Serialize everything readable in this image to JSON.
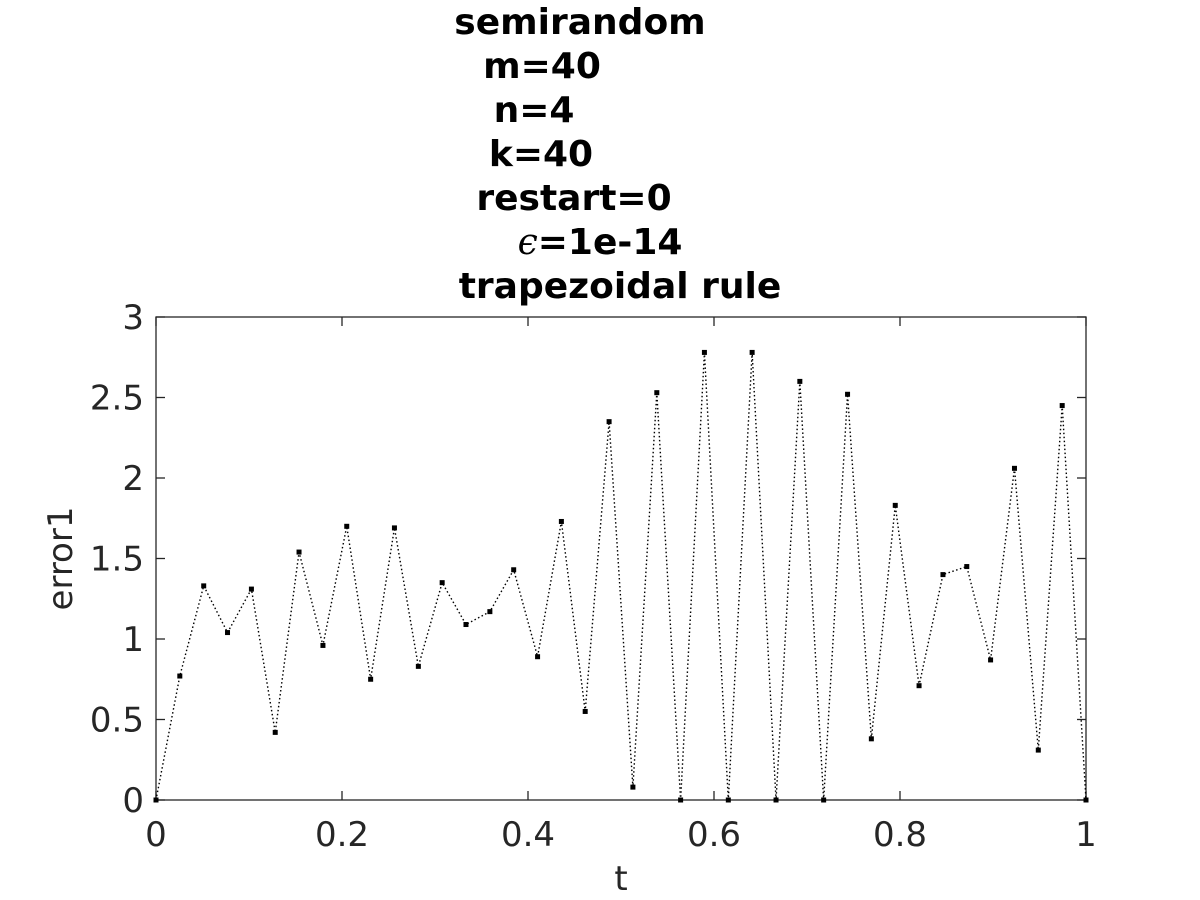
{
  "chart_data": {
    "type": "line",
    "title": [
      "semirandom",
      "m=40",
      "n=4",
      "k=40",
      "restart=0",
      "ϵ=1e-14",
      "trapezoidal rule"
    ],
    "xlabel": "t",
    "ylabel": "error1",
    "xlim": [
      0,
      1
    ],
    "ylim": [
      0,
      3
    ],
    "xticks": [
      "0",
      "0.2",
      "0.4",
      "0.6",
      "0.8",
      "1"
    ],
    "yticks": [
      "0",
      "0.5",
      "1",
      "1.5",
      "2",
      "2.5",
      "3"
    ],
    "grid": false,
    "legend": "none",
    "line_style": "dotted",
    "marker": "square",
    "color": "#000000",
    "series": [
      {
        "x": [
          0,
          0.0256,
          0.0513,
          0.0769,
          0.1026,
          0.1282,
          0.1538,
          0.1795,
          0.2051,
          0.2308,
          0.2564,
          0.2821,
          0.3077,
          0.3333,
          0.359,
          0.3846,
          0.4103,
          0.4359,
          0.4615,
          0.4872,
          0.5128,
          0.5385,
          0.5641,
          0.5897,
          0.6154,
          0.641,
          0.6667,
          0.6923,
          0.7179,
          0.7436,
          0.7692,
          0.7949,
          0.8205,
          0.8462,
          0.8718,
          0.8974,
          0.9231,
          0.9487,
          0.9744,
          1
        ],
        "y": [
          0,
          0.77,
          1.33,
          1.04,
          1.31,
          0.42,
          1.54,
          0.96,
          1.7,
          0.75,
          1.69,
          0.83,
          1.35,
          1.09,
          1.17,
          1.43,
          0.89,
          1.73,
          0.55,
          2.35,
          0.08,
          2.53,
          0,
          2.78,
          0,
          2.78,
          0,
          2.6,
          0,
          2.52,
          0.38,
          1.83,
          0.71,
          1.4,
          1.45,
          0.87,
          2.06,
          0.31,
          2.45,
          0
        ]
      }
    ]
  }
}
